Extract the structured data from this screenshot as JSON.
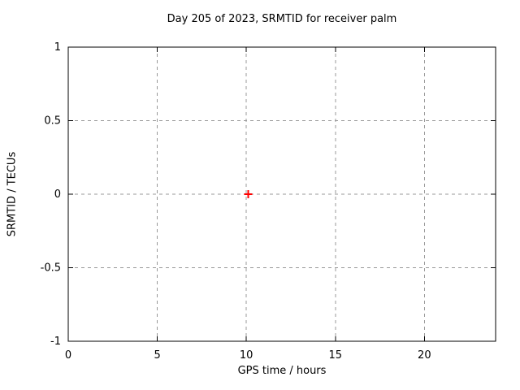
{
  "chart_data": {
    "type": "scatter",
    "title": "Day 205 of 2023, SRMTID for receiver palm",
    "xlabel": "GPS time / hours",
    "ylabel": "SRMTID / TECUs",
    "xlim": [
      0,
      24
    ],
    "ylim": [
      -1,
      1
    ],
    "xticks": [
      0,
      5,
      10,
      15,
      20
    ],
    "yticks": [
      -1,
      -0.5,
      0,
      0.5,
      1
    ],
    "grid": true,
    "legend": "none",
    "series": [
      {
        "name": "SRMTID",
        "marker": "plus",
        "color": "#ff0000",
        "points": [
          {
            "x": 10.1,
            "y": 0.0
          }
        ]
      }
    ],
    "colors": {
      "background": "#ffffff",
      "border": "#000000",
      "grid": "#999999",
      "text": "#000000"
    }
  }
}
